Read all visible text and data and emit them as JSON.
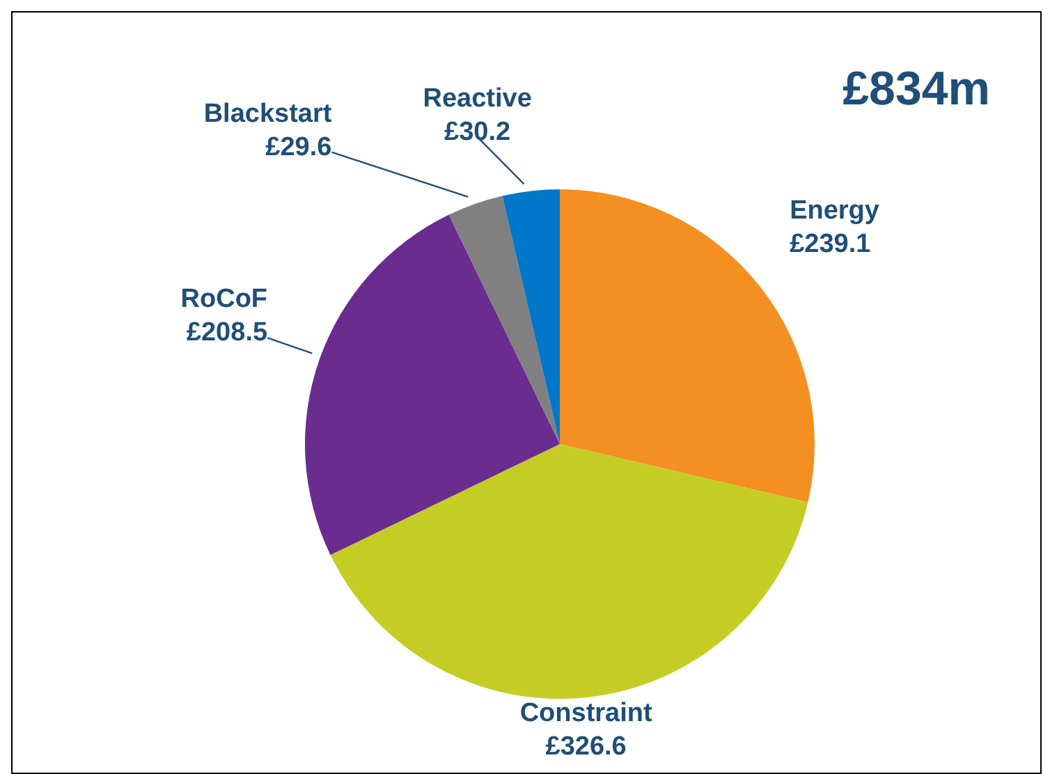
{
  "chart_data": {
    "type": "pie",
    "title": "£834m",
    "categories": [
      "Energy",
      "Constraint",
      "RoCoF",
      "Blackstart",
      "Reactive"
    ],
    "values": [
      239.1,
      326.6,
      208.5,
      29.6,
      30.2
    ],
    "value_labels": [
      "£239.1",
      "£326.6",
      "£208.5",
      "£29.6",
      "£30.2"
    ],
    "colors": [
      "#f39021",
      "#c5cd24",
      "#6a2c8e",
      "#808080",
      "#0077c8"
    ]
  }
}
